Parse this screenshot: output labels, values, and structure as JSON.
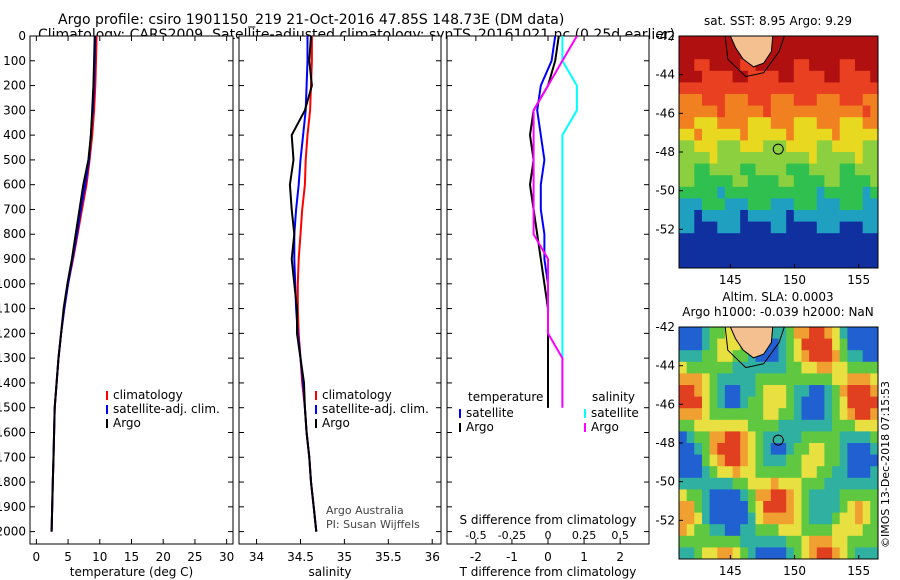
{
  "header": {
    "line1": "Argo profile: csiro 1901150_219 21-Oct-2016 47.85S 148.73E (DM data)",
    "line2": "Climatology: CARS2009. Satellite-adjusted climatology: synTS_20161021.nc (0.25d earlier)"
  },
  "colors": {
    "argo": "#000000",
    "climatology": "#ff0000",
    "satellite": "#0000ff",
    "sat_salinity": "#00ffff",
    "argo_salinity_diff": "#ff00ff"
  },
  "chart_data": [
    {
      "type": "line",
      "id": "temperature",
      "xlabel": "temperature (deg C)",
      "ylabel": "",
      "xlim": [
        -1,
        31
      ],
      "ylim": [
        2050,
        0
      ],
      "xticks": [
        "0",
        "5",
        "10",
        "15",
        "20",
        "25",
        "30"
      ],
      "yticks": [
        "0",
        "100",
        "200",
        "300",
        "400",
        "500",
        "600",
        "700",
        "800",
        "900",
        "1000",
        "1100",
        "1200",
        "1300",
        "1400",
        "1500",
        "1600",
        "1700",
        "1800",
        "1900",
        "2000"
      ],
      "legend": [
        "climatology",
        "satellite-adj. clim.",
        "Argo"
      ],
      "legend_position": "lower-right",
      "series": [
        {
          "name": "climatology",
          "x": [
            9.5,
            9.4,
            9.3,
            9.1,
            8.8,
            8.4,
            7.9,
            7.2,
            6.5,
            5.8,
            5.0,
            4.4,
            3.9,
            3.5,
            3.2,
            2.9,
            2.8,
            2.7,
            2.6,
            2.5,
            2.4
          ],
          "y": [
            0,
            100,
            200,
            300,
            400,
            500,
            600,
            700,
            800,
            900,
            1000,
            1100,
            1200,
            1300,
            1400,
            1500,
            1600,
            1700,
            1800,
            1900,
            2000
          ]
        },
        {
          "name": "satellite-adj. clim.",
          "x": [
            9.3,
            9.2,
            9.1,
            8.9,
            8.6,
            8.3,
            7.7,
            7.0,
            6.4,
            5.7,
            5.0,
            4.4,
            3.9,
            3.5,
            3.2,
            2.9,
            2.8,
            2.7,
            2.6,
            2.5,
            2.4
          ],
          "y": [
            0,
            100,
            200,
            300,
            400,
            500,
            600,
            700,
            800,
            900,
            1000,
            1100,
            1200,
            1300,
            1400,
            1500,
            1600,
            1700,
            1800,
            1900,
            2000
          ]
        },
        {
          "name": "Argo",
          "x": [
            9.2,
            9.1,
            9.0,
            8.8,
            8.6,
            8.2,
            7.4,
            6.8,
            6.2,
            5.6,
            4.9,
            4.3,
            3.9,
            3.5,
            3.2,
            2.9,
            2.8,
            2.7,
            2.6,
            2.5,
            2.4
          ],
          "y": [
            0,
            100,
            200,
            300,
            400,
            500,
            600,
            700,
            800,
            900,
            1000,
            1100,
            1200,
            1300,
            1400,
            1500,
            1600,
            1700,
            1800,
            1900,
            2000
          ]
        }
      ]
    },
    {
      "type": "line",
      "id": "salinity",
      "xlabel": "salinity",
      "xlim": [
        33.8,
        36.1
      ],
      "ylim": [
        2050,
        0
      ],
      "xticks": [
        "34",
        "34.5",
        "35",
        "35.5",
        "36"
      ],
      "legend": [
        "climatology",
        "satellite-adj. clim.",
        "Argo"
      ],
      "legend_position": "lower-right",
      "annotation": [
        "Argo Australia",
        "PI: Susan Wijffels"
      ],
      "series": [
        {
          "name": "climatology",
          "x": [
            34.63,
            34.63,
            34.62,
            34.61,
            34.58,
            34.56,
            34.55,
            34.52,
            34.5,
            34.48,
            34.47,
            34.47,
            34.48,
            34.5,
            34.52,
            34.55,
            34.57,
            34.6,
            34.62,
            34.65,
            34.68
          ],
          "y": [
            0,
            100,
            200,
            300,
            400,
            500,
            600,
            700,
            800,
            900,
            1000,
            1100,
            1200,
            1300,
            1400,
            1500,
            1600,
            1700,
            1800,
            1900,
            2000
          ]
        },
        {
          "name": "satellite-adj. clim.",
          "x": [
            34.58,
            34.58,
            34.57,
            34.56,
            34.53,
            34.5,
            34.48,
            34.45,
            34.43,
            34.43,
            34.44,
            34.45,
            34.47,
            34.5,
            34.53,
            34.55,
            34.57,
            34.6,
            34.62,
            34.65,
            34.68
          ],
          "y": [
            0,
            100,
            200,
            300,
            400,
            500,
            600,
            700,
            800,
            900,
            1000,
            1100,
            1200,
            1300,
            1400,
            1500,
            1600,
            1700,
            1800,
            1900,
            2000
          ]
        },
        {
          "name": "Argo",
          "x": [
            34.62,
            34.6,
            34.63,
            34.55,
            34.4,
            34.42,
            34.38,
            34.4,
            34.43,
            34.4,
            34.43,
            34.46,
            34.46,
            34.5,
            34.54,
            34.55,
            34.57,
            34.6,
            34.62,
            34.65,
            34.68
          ],
          "y": [
            0,
            100,
            200,
            300,
            400,
            500,
            600,
            700,
            800,
            900,
            1000,
            1100,
            1200,
            1300,
            1400,
            1500,
            1600,
            1700,
            1800,
            1900,
            2000
          ]
        }
      ]
    },
    {
      "type": "line",
      "id": "difference",
      "xlabel": "T difference from climatology",
      "xlabel2": "S difference from climatology",
      "xlim": [
        -2.8,
        2.8
      ],
      "ylim": [
        2050,
        0
      ],
      "xticks": [
        "-2",
        "-1",
        "0",
        "1",
        "2"
      ],
      "xticks_s": [
        "-0.5",
        "-0.25",
        "0",
        "0.25",
        "0.5"
      ],
      "legend_left_title": "temperature",
      "legend_left": [
        "satellite",
        "Argo"
      ],
      "legend_right_title": "salinity",
      "legend_right": [
        "satellite",
        "Argo"
      ],
      "series": [
        {
          "name": "temperature satellite",
          "x": [
            0.2,
            0.1,
            -0.2,
            -0.3,
            -0.2,
            -0.1,
            -0.2,
            -0.2,
            -0.1,
            -0.1,
            0,
            0,
            0,
            0,
            0,
            0
          ],
          "y": [
            0,
            100,
            200,
            300,
            400,
            500,
            600,
            700,
            800,
            900,
            1000,
            1100,
            1200,
            1300,
            1400,
            1500
          ]
        },
        {
          "name": "temperature Argo",
          "x": [
            0.3,
            0.2,
            0,
            -0.4,
            -0.5,
            -0.4,
            -0.5,
            -0.4,
            -0.3,
            -0.2,
            -0.1,
            0,
            0,
            0,
            0,
            0
          ],
          "y": [
            0,
            100,
            200,
            300,
            400,
            500,
            600,
            700,
            800,
            900,
            1000,
            1100,
            1200,
            1300,
            1400,
            1500
          ]
        },
        {
          "name": "salinity satellite",
          "x": [
            0.1,
            0.1,
            0.2,
            0.2,
            0.1,
            0.1,
            0.1,
            0.1,
            0.1,
            0.1,
            0.1,
            0.1,
            0.1,
            0.1,
            0.1,
            0.1
          ],
          "y": [
            0,
            100,
            200,
            300,
            400,
            500,
            600,
            700,
            800,
            900,
            1000,
            1100,
            1200,
            1300,
            1400,
            1500
          ]
        },
        {
          "name": "salinity Argo",
          "x": [
            0.2,
            0.1,
            0,
            -0.1,
            -0.1,
            -0.1,
            -0.1,
            -0.1,
            -0.1,
            0,
            0,
            0,
            0,
            0.1,
            0.1,
            0.1
          ],
          "y": [
            0,
            100,
            200,
            300,
            400,
            500,
            600,
            700,
            800,
            900,
            1000,
            1100,
            1200,
            1300,
            1400,
            1500
          ]
        }
      ]
    },
    {
      "type": "heatmap",
      "id": "sst_map",
      "title": "sat. SST: 8.95 Argo: 9.29",
      "xticks": [
        "145",
        "150",
        "155"
      ],
      "yticks": [
        "-42",
        "-44",
        "-46",
        "-48",
        "-50",
        "-52"
      ],
      "xlim": [
        141,
        156.5
      ],
      "ylim": [
        -54,
        -42
      ],
      "marker": {
        "lon": 148.73,
        "lat": -47.85
      }
    },
    {
      "type": "heatmap",
      "id": "sla_map",
      "title_line1": "Altim. SLA: 0.0003",
      "title_line2": "Argo h1000: -0.039 h2000: NaN",
      "xticks": [
        "145",
        "150",
        "155"
      ],
      "yticks": [
        "-42",
        "-44",
        "-46",
        "-48",
        "-50",
        "-52"
      ],
      "xlim": [
        141,
        156.5
      ],
      "ylim": [
        -54,
        -42
      ],
      "marker": {
        "lon": 148.73,
        "lat": -47.85
      }
    }
  ],
  "footer": {
    "credit": "©IMOS 13-Dec-2018 07:15:53"
  }
}
